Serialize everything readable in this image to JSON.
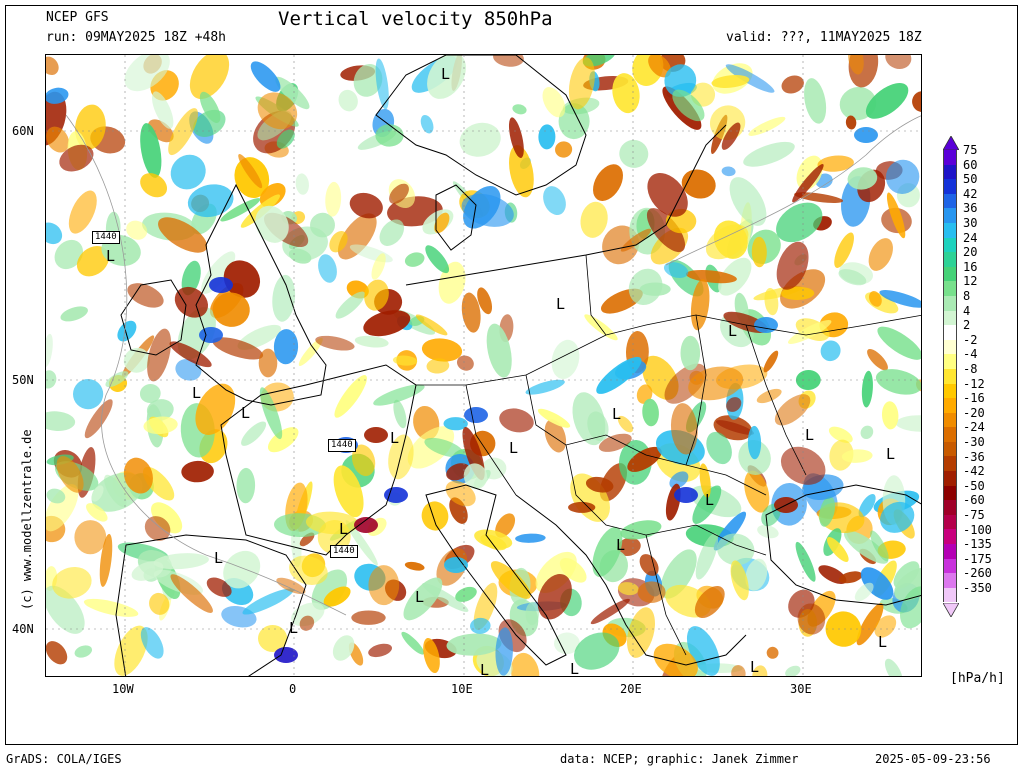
{
  "header": {
    "model": "NCEP GFS",
    "run": "run: 09MAY2025 18Z +48h",
    "title": "Vertical velocity 850hPa",
    "valid": "valid: ???, 11MAY2025 18Z"
  },
  "axes": {
    "lat_labels": [
      "60N",
      "50N",
      "40N"
    ],
    "lon_labels": [
      "10W",
      "0",
      "10E",
      "20E",
      "30E"
    ]
  },
  "legend": {
    "units": "[hPa/h]",
    "levels": [
      "75",
      "60",
      "50",
      "42",
      "36",
      "30",
      "24",
      "20",
      "16",
      "12",
      "8",
      "4",
      "2",
      "-2",
      "-4",
      "-8",
      "-12",
      "-16",
      "-20",
      "-24",
      "-30",
      "-36",
      "-42",
      "-50",
      "-60",
      "-75",
      "-100",
      "-135",
      "-175",
      "-260",
      "-350"
    ],
    "colors": [
      "#5a00d8",
      "#1e14c8",
      "#1432d8",
      "#1e64e6",
      "#2896f0",
      "#28bef0",
      "#1ed2be",
      "#2ed296",
      "#46d278",
      "#78e08c",
      "#aaeab4",
      "#d2f5d2",
      "#ffffff",
      "#ffffd2",
      "#ffff82",
      "#ffe632",
      "#ffc800",
      "#ffaa00",
      "#f08c00",
      "#dc6e00",
      "#c85a00",
      "#b43c00",
      "#a01e00",
      "#8c0000",
      "#a00028",
      "#b4004b",
      "#c8007d",
      "#b400b4",
      "#c832dc",
      "#dc78ee",
      "#f0c8f8"
    ]
  },
  "map_labels": {
    "lows": [
      "L",
      "L",
      "L",
      "L",
      "L",
      "L",
      "L",
      "L",
      "L",
      "L",
      "L",
      "L",
      "L",
      "L",
      "L",
      "L",
      "L",
      "L",
      "L",
      "L",
      "L"
    ],
    "contours": [
      "1440",
      "1440",
      "1440"
    ]
  },
  "copyright": "(c) www.modellzentrale.de",
  "footer": {
    "left": "GrADS: COLA/IGES",
    "center": "data: NCEP; graphic: Janek Zimmer",
    "right": "2025-05-09-23:56"
  }
}
